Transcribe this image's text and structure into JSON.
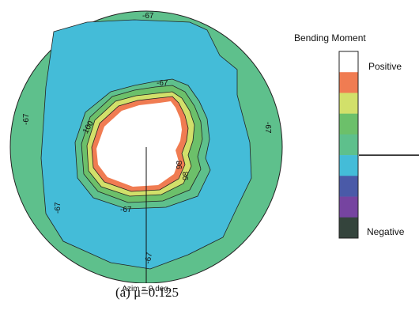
{
  "chart_data": {
    "type": "heatmap",
    "title": "Bending Moment",
    "legend": {
      "placement": "right",
      "high_label": "Positive",
      "low_label": "Negative"
    },
    "colorbar": [
      "#ffffff",
      "#f07c52",
      "#d2e06a",
      "#6cc06a",
      "#5ec08c",
      "#44bcd8",
      "#4a5aa8",
      "#7644a0",
      "#34443c"
    ],
    "zero_marker_index": 5,
    "contour_labels": [
      "-67",
      "-67",
      "-67",
      "-67",
      "-67",
      "-67",
      "-67",
      "100",
      "98",
      "98"
    ],
    "azimuth_label": "Azim = 0 deg.",
    "caption": "(a)  μ=0.125"
  }
}
